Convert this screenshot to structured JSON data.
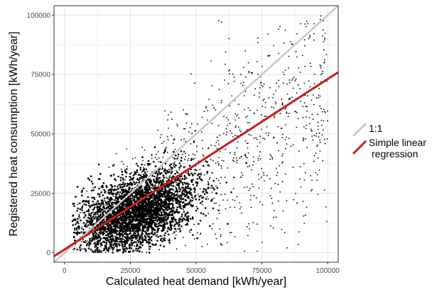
{
  "chart_data": {
    "type": "scatter",
    "xlabel": "Calculated heat demand [kWh/year]",
    "ylabel": "Registered heat consumption [kWh/year]",
    "xlim": [
      -4000,
      104000
    ],
    "ylim": [
      -4000,
      104000
    ],
    "x_ticks": [
      0,
      25000,
      50000,
      75000,
      100000
    ],
    "y_ticks": [
      0,
      25000,
      50000,
      75000,
      100000
    ],
    "x_tick_labels": [
      "0",
      "25000",
      "50000",
      "75000",
      "100000"
    ],
    "y_tick_labels": [
      "0",
      "25000",
      "50000",
      "75000",
      "100000"
    ],
    "grid": true,
    "legend_position": "right",
    "series": [
      {
        "kind": "points",
        "color": "#000000"
      },
      {
        "name": "1:1",
        "kind": "line",
        "color": "#c8c8c8",
        "x": [
          -4000,
          104000
        ],
        "y": [
          -4000,
          104000
        ]
      },
      {
        "name": "Simple linear regression",
        "legend_lines": [
          "Simple linear",
          "regression"
        ],
        "kind": "line",
        "color": "#c81e1e",
        "x": [
          -4000,
          104000
        ],
        "y": [
          -1500,
          76000
        ]
      }
    ],
    "point_cloud": {
      "dense_center": [
        27000,
        17000
      ],
      "dense_spread": [
        11000,
        7500
      ],
      "x_range": [
        3000,
        100000
      ],
      "y_range": [
        0,
        100000
      ]
    }
  }
}
